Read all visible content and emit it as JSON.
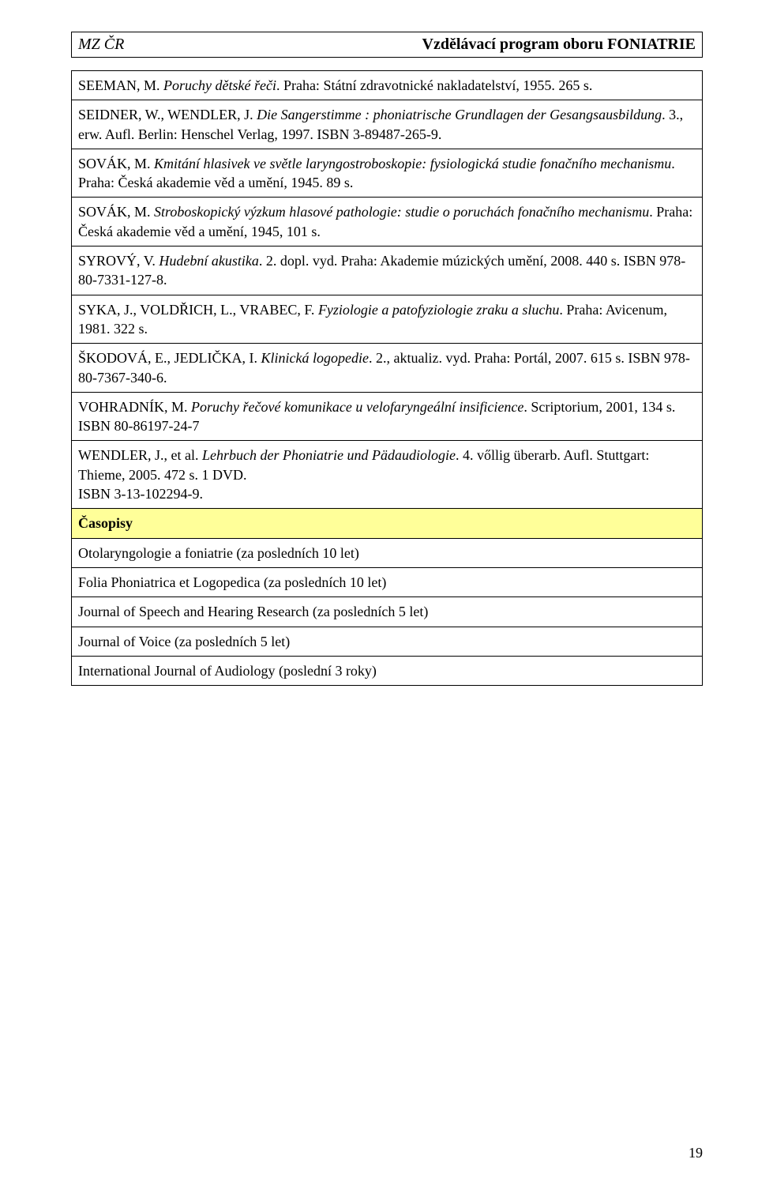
{
  "header": {
    "left": "MZ ČR",
    "right": "Vzdělávací program oboru FONIATRIE"
  },
  "refs": [
    {
      "segments": [
        {
          "t": "SEEMAN, M. ",
          "i": false
        },
        {
          "t": "Poruchy dětské řeči",
          "i": true
        },
        {
          "t": ". Praha: Státní zdravotnické nakladatelství, 1955. 265 s.",
          "i": false
        }
      ]
    },
    {
      "segments": [
        {
          "t": "SEIDNER, W., WENDLER, J. ",
          "i": false
        },
        {
          "t": "Die Sangerstimme : phoniatrische Grundlagen der Gesangsausbildung",
          "i": true
        },
        {
          "t": ". 3., erw. Aufl. Berlin: Henschel Verlag, 1997. ISBN 3-89487-265-9.",
          "i": false
        }
      ]
    },
    {
      "segments": [
        {
          "t": "SOVÁK, M. ",
          "i": false
        },
        {
          "t": "Kmitání hlasivek ve světle laryngostroboskopie: fysiologická studie fonačního mechanismu",
          "i": true
        },
        {
          "t": ". Praha: Česká akademie věd a umění, 1945. 89 s.",
          "i": false
        }
      ]
    },
    {
      "segments": [
        {
          "t": "SOVÁK, M. ",
          "i": false
        },
        {
          "t": "Stroboskopický výzkum hlasové pathologie: studie o poruchách fonačního mechanismu",
          "i": true
        },
        {
          "t": ". Praha: Česká akademie věd a umění, 1945, 101 s.",
          "i": false
        }
      ]
    },
    {
      "segments": [
        {
          "t": "SYROVÝ, V. ",
          "i": false
        },
        {
          "t": "Hudební akustika",
          "i": true
        },
        {
          "t": ". 2. dopl. vyd. Praha: Akademie múzických umění, 2008. 440 s. ISBN 978-80-7331-127-8.",
          "i": false
        }
      ]
    },
    {
      "segments": [
        {
          "t": "SYKA, J., VOLDŘICH, L., VRABEC, F. ",
          "i": false
        },
        {
          "t": "Fyziologie a patofyziologie zraku a sluchu",
          "i": true
        },
        {
          "t": ". Praha: Avicenum, 1981. 322 s.",
          "i": false
        }
      ]
    },
    {
      "segments": [
        {
          "t": "ŠKODOVÁ, E., JEDLIČKA, I. ",
          "i": false
        },
        {
          "t": "Klinická logopedie",
          "i": true
        },
        {
          "t": ". 2., aktualiz. vyd. Praha: Portál, 2007. 615 s. ISBN 978-80-7367-340-6.",
          "i": false
        }
      ]
    },
    {
      "segments": [
        {
          "t": "VOHRADNÍK, M. ",
          "i": false
        },
        {
          "t": "Poruchy řečové komunikace u velofaryngeální insificience",
          "i": true
        },
        {
          "t": ". Scriptorium, 2001, 134 s. ISBN 80-86197-24-7",
          "i": false
        }
      ]
    },
    {
      "segments": [
        {
          "t": "WENDLER, J., et al. ",
          "i": false
        },
        {
          "t": "Lehrbuch der Phoniatrie und Pädaudiologie",
          "i": true
        },
        {
          "t": ". 4. vőllig überarb. Aufl. Stuttgart: Thieme, 2005. 472 s. 1 DVD.\nISBN 3-13-102294-9.",
          "i": false
        }
      ]
    }
  ],
  "sectionHeading": "Časopisy",
  "journals": [
    "Otolaryngologie a foniatrie (za posledních 10 let)",
    "Folia Phoniatrica et Logopedica (za posledních 10 let)",
    "Journal of Speech and Hearing Research (za posledních 5 let)",
    "Journal of Voice (za posledních 5 let)",
    "International Journal of Audiology (poslední 3 roky)"
  ],
  "pageNumber": "19",
  "colors": {
    "highlightBg": "#ffff99",
    "border": "#000000",
    "text": "#000000",
    "background": "#ffffff"
  },
  "typography": {
    "bodyFontSize": 18,
    "headerFontSize": 20,
    "fontFamily": "Times New Roman"
  }
}
